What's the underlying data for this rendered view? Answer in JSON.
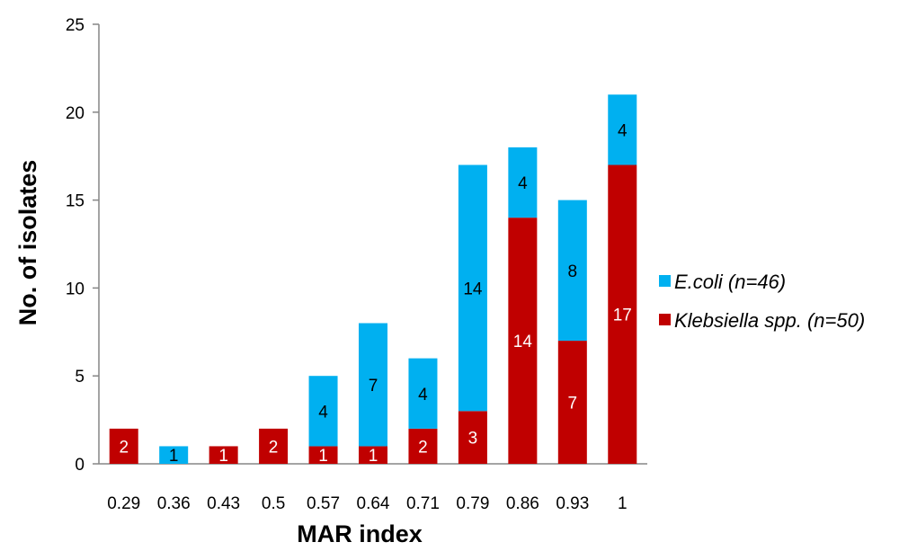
{
  "chart_data": {
    "type": "bar",
    "stacked": true,
    "xlabel": "MAR index",
    "ylabel": "No. of isolates",
    "ylim": [
      0,
      25
    ],
    "yticks": [
      0,
      5,
      10,
      15,
      20,
      25
    ],
    "grid": false,
    "legend_position": "right",
    "categories": [
      "0.29",
      "0.36",
      "0.43",
      "0.5",
      "0.57",
      "0.64",
      "0.71",
      "0.79",
      "0.86",
      "0.93",
      "1"
    ],
    "series": [
      {
        "name": "Klebsiella spp. (n=50)",
        "color": "#c00000",
        "label_color": "#ffffff",
        "values": [
          2,
          0,
          1,
          2,
          1,
          1,
          2,
          3,
          14,
          7,
          17
        ]
      },
      {
        "name": "E.coli (n=46)",
        "color": "#00b0f0",
        "label_color": "#000000",
        "values": [
          0,
          1,
          0,
          0,
          4,
          7,
          4,
          14,
          4,
          8,
          4
        ]
      }
    ],
    "legend_order": [
      1,
      0
    ]
  }
}
